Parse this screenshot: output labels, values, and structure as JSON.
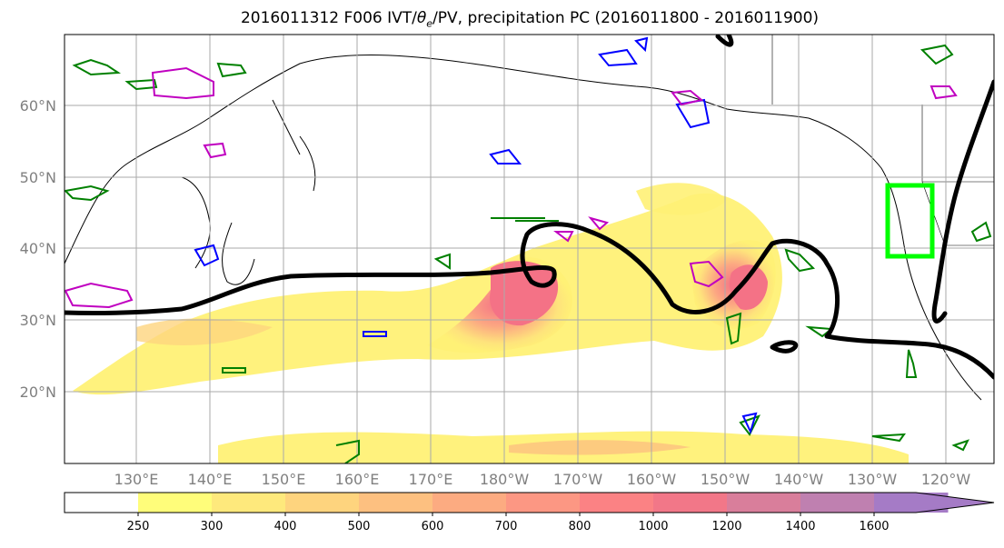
{
  "title": {
    "prefix": "2016011312 F006 IVT/",
    "theta": "θ",
    "theta_sub": "e",
    "suffix": "/PV, precipitation PC (2016011800 - 2016011900)"
  },
  "map": {
    "lat_labels": [
      "60°N",
      "50°N",
      "40°N",
      "30°N",
      "20°N"
    ],
    "lon_labels": [
      "130°E",
      "140°E",
      "150°E",
      "160°E",
      "170°E",
      "180°W",
      "170°W",
      "160°W",
      "150°W",
      "140°W",
      "130°W",
      "120°W"
    ]
  },
  "colorbar": {
    "ticks": [
      "250",
      "300",
      "400",
      "500",
      "600",
      "700",
      "800",
      "1000",
      "1200",
      "1400",
      "1600"
    ],
    "colors": [
      "#ffffff",
      "#fffd7a",
      "#fee97c",
      "#fed47e",
      "#fdc080",
      "#fcab81",
      "#fc9783",
      "#fb8284",
      "#f27788",
      "#d97e9b",
      "#bf80b0",
      "#a57bc6"
    ]
  },
  "colors": {
    "ivt_fill_low": "#fff176",
    "ivt_fill_high": "#f47286",
    "theta_e_contour": "#000000",
    "pv_positive": "#008000",
    "pv_negative": "#0000ff",
    "pv_other": "#c000c0",
    "box": "#00ff00"
  }
}
